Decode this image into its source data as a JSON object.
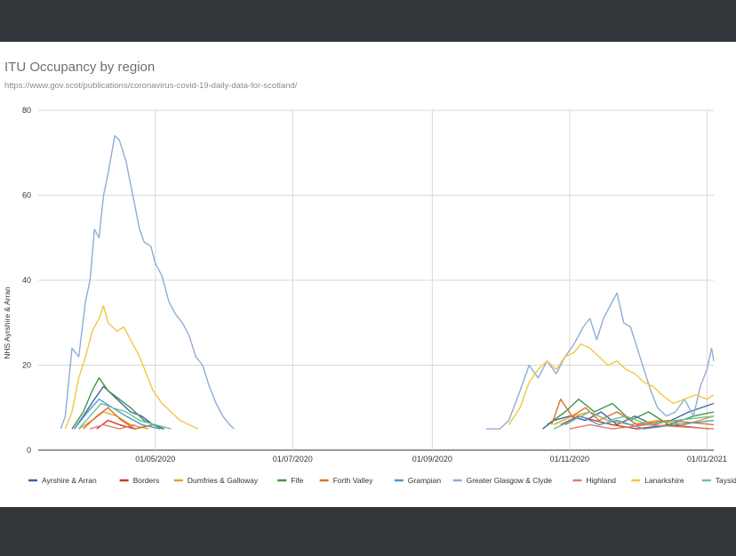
{
  "chart_data": {
    "type": "line",
    "title": "ITU Occupancy by region",
    "subtitle": "https://www.gov.scot/publications/coronavirus-covid-19-daily-data-for-scotland/",
    "ylabel": "NHS Ayrshire & Arran",
    "xlabel": "",
    "ylim": [
      0,
      80
    ],
    "yticks": [
      0,
      20,
      40,
      60,
      80
    ],
    "xlim": [
      "2020-03-10",
      "2021-01-04"
    ],
    "xticks": [
      {
        "date": "2020-05-01",
        "label": "01/05/2020"
      },
      {
        "date": "2020-07-01",
        "label": "01/07/2020"
      },
      {
        "date": "2020-09-01",
        "label": "01/09/2020"
      },
      {
        "date": "2020-11-01",
        "label": "01/11/2020"
      },
      {
        "date": "2021-01-01",
        "label": "01/01/2021"
      }
    ],
    "grid": true,
    "legend_position": "bottom",
    "series": [
      {
        "name": "Ayrshire & Arran",
        "color": "#3a67a6",
        "points": [
          [
            "2020-03-26",
            5
          ],
          [
            "2020-03-30",
            8
          ],
          [
            "2020-04-04",
            12
          ],
          [
            "2020-04-08",
            15
          ],
          [
            "2020-04-12",
            13
          ],
          [
            "2020-04-16",
            11
          ],
          [
            "2020-04-20",
            9
          ],
          [
            "2020-04-25",
            8
          ],
          [
            "2020-04-30",
            6
          ],
          [
            "2020-05-05",
            5
          ],
          [
            "2020-10-20",
            5
          ],
          [
            "2020-10-25",
            7
          ],
          [
            "2020-11-01",
            8
          ],
          [
            "2020-11-08",
            7
          ],
          [
            "2020-11-15",
            9
          ],
          [
            "2020-11-22",
            6
          ],
          [
            "2020-11-30",
            8
          ],
          [
            "2020-12-08",
            6
          ],
          [
            "2020-12-16",
            7
          ],
          [
            "2020-12-24",
            9
          ],
          [
            "2021-01-04",
            11
          ]
        ]
      },
      {
        "name": "Borders",
        "color": "#c73b2c",
        "points": [
          [
            "2020-04-05",
            5
          ],
          [
            "2020-04-10",
            7
          ],
          [
            "2020-04-15",
            6
          ],
          [
            "2020-04-22",
            5
          ],
          [
            "2020-04-30",
            6
          ],
          [
            "2020-10-28",
            6
          ],
          [
            "2020-11-05",
            8
          ],
          [
            "2020-11-12",
            7
          ],
          [
            "2020-11-20",
            6
          ],
          [
            "2020-12-01",
            5
          ],
          [
            "2020-12-15",
            6
          ],
          [
            "2021-01-02",
            5
          ]
        ]
      },
      {
        "name": "Dumfries & Galloway",
        "color": "#e0a52e",
        "points": [
          [
            "2020-03-28",
            5
          ],
          [
            "2020-04-03",
            7
          ],
          [
            "2020-04-08",
            9
          ],
          [
            "2020-04-14",
            8
          ],
          [
            "2020-04-20",
            6
          ],
          [
            "2020-04-28",
            5
          ],
          [
            "2020-10-25",
            6
          ],
          [
            "2020-11-02",
            8
          ],
          [
            "2020-11-10",
            9
          ],
          [
            "2020-11-18",
            7
          ],
          [
            "2020-11-28",
            6
          ],
          [
            "2020-12-10",
            7
          ],
          [
            "2020-12-22",
            6
          ],
          [
            "2021-01-04",
            8
          ]
        ]
      },
      {
        "name": "Fife",
        "color": "#3e9647",
        "points": [
          [
            "2020-03-25",
            5
          ],
          [
            "2020-03-30",
            9
          ],
          [
            "2020-04-03",
            14
          ],
          [
            "2020-04-06",
            17
          ],
          [
            "2020-04-10",
            14
          ],
          [
            "2020-04-15",
            12
          ],
          [
            "2020-04-20",
            10
          ],
          [
            "2020-04-26",
            7
          ],
          [
            "2020-05-04",
            5
          ],
          [
            "2020-10-22",
            6
          ],
          [
            "2020-10-30",
            9
          ],
          [
            "2020-11-05",
            12
          ],
          [
            "2020-11-12",
            9
          ],
          [
            "2020-11-20",
            11
          ],
          [
            "2020-11-28",
            7
          ],
          [
            "2020-12-06",
            9
          ],
          [
            "2020-12-15",
            6
          ],
          [
            "2020-12-26",
            8
          ],
          [
            "2021-01-04",
            9
          ]
        ]
      },
      {
        "name": "Forth Valley",
        "color": "#d9702a",
        "points": [
          [
            "2020-03-30",
            5
          ],
          [
            "2020-04-05",
            8
          ],
          [
            "2020-04-10",
            10
          ],
          [
            "2020-04-16",
            7
          ],
          [
            "2020-04-22",
            5
          ],
          [
            "2020-04-30",
            6
          ],
          [
            "2020-10-24",
            6
          ],
          [
            "2020-10-28",
            12
          ],
          [
            "2020-11-02",
            8
          ],
          [
            "2020-11-08",
            10
          ],
          [
            "2020-11-14",
            7
          ],
          [
            "2020-11-22",
            9
          ],
          [
            "2020-12-01",
            6
          ],
          [
            "2020-12-15",
            7
          ],
          [
            "2021-01-04",
            6
          ]
        ]
      },
      {
        "name": "Grampian",
        "color": "#4d9acb",
        "points": [
          [
            "2020-03-26",
            5
          ],
          [
            "2020-04-01",
            9
          ],
          [
            "2020-04-06",
            12
          ],
          [
            "2020-04-12",
            10
          ],
          [
            "2020-04-18",
            8
          ],
          [
            "2020-04-25",
            6
          ],
          [
            "2020-05-03",
            5
          ],
          [
            "2020-10-30",
            6
          ],
          [
            "2020-11-06",
            8
          ],
          [
            "2020-11-14",
            6
          ],
          [
            "2020-11-22",
            7
          ],
          [
            "2020-12-04",
            5
          ],
          [
            "2020-12-18",
            6
          ],
          [
            "2021-01-04",
            7
          ]
        ]
      },
      {
        "name": "Greater Glasgow & Clyde",
        "color": "#8eadd6",
        "points": [
          [
            "2020-03-20",
            5
          ],
          [
            "2020-03-22",
            8
          ],
          [
            "2020-03-25",
            24
          ],
          [
            "2020-03-28",
            22
          ],
          [
            "2020-03-31",
            35
          ],
          [
            "2020-04-02",
            40
          ],
          [
            "2020-04-04",
            52
          ],
          [
            "2020-04-06",
            50
          ],
          [
            "2020-04-08",
            60
          ],
          [
            "2020-04-10",
            65
          ],
          [
            "2020-04-13",
            74
          ],
          [
            "2020-04-15",
            73
          ],
          [
            "2020-04-18",
            68
          ],
          [
            "2020-04-21",
            60
          ],
          [
            "2020-04-24",
            52
          ],
          [
            "2020-04-26",
            49
          ],
          [
            "2020-04-29",
            48
          ],
          [
            "2020-05-01",
            44
          ],
          [
            "2020-05-04",
            41
          ],
          [
            "2020-05-07",
            35
          ],
          [
            "2020-05-10",
            32
          ],
          [
            "2020-05-13",
            30
          ],
          [
            "2020-05-16",
            27
          ],
          [
            "2020-05-19",
            22
          ],
          [
            "2020-05-22",
            20
          ],
          [
            "2020-05-25",
            15
          ],
          [
            "2020-05-28",
            11
          ],
          [
            "2020-05-31",
            8
          ],
          [
            "2020-06-03",
            6
          ],
          [
            "2020-06-05",
            5
          ],
          [
            "2020-09-25",
            5
          ],
          [
            "2020-10-01",
            5
          ],
          [
            "2020-10-05",
            7
          ],
          [
            "2020-10-10",
            14
          ],
          [
            "2020-10-14",
            20
          ],
          [
            "2020-10-18",
            17
          ],
          [
            "2020-10-22",
            21
          ],
          [
            "2020-10-26",
            18
          ],
          [
            "2020-10-30",
            22
          ],
          [
            "2020-11-03",
            25
          ],
          [
            "2020-11-07",
            29
          ],
          [
            "2020-11-10",
            31
          ],
          [
            "2020-11-13",
            26
          ],
          [
            "2020-11-16",
            31
          ],
          [
            "2020-11-19",
            34
          ],
          [
            "2020-11-22",
            37
          ],
          [
            "2020-11-25",
            30
          ],
          [
            "2020-11-28",
            29
          ],
          [
            "2020-12-01",
            24
          ],
          [
            "2020-12-04",
            19
          ],
          [
            "2020-12-07",
            14
          ],
          [
            "2020-12-10",
            10
          ],
          [
            "2020-12-14",
            8
          ],
          [
            "2020-12-18",
            9
          ],
          [
            "2020-12-22",
            12
          ],
          [
            "2020-12-26",
            8
          ],
          [
            "2020-12-29",
            15
          ],
          [
            "2021-01-01",
            19
          ],
          [
            "2021-01-03",
            24
          ],
          [
            "2021-01-04",
            21
          ]
        ]
      },
      {
        "name": "Highland",
        "color": "#e07b6a",
        "points": [
          [
            "2020-04-02",
            5
          ],
          [
            "2020-04-08",
            6
          ],
          [
            "2020-04-15",
            5
          ],
          [
            "2020-04-22",
            6
          ],
          [
            "2020-11-01",
            5
          ],
          [
            "2020-11-10",
            6
          ],
          [
            "2020-11-20",
            5
          ],
          [
            "2020-12-05",
            6
          ],
          [
            "2021-01-04",
            5
          ]
        ]
      },
      {
        "name": "Lanarkshire",
        "color": "#f2c744",
        "points": [
          [
            "2020-03-22",
            5
          ],
          [
            "2020-03-25",
            9
          ],
          [
            "2020-03-28",
            17
          ],
          [
            "2020-03-31",
            22
          ],
          [
            "2020-04-03",
            28
          ],
          [
            "2020-04-06",
            31
          ],
          [
            "2020-04-08",
            34
          ],
          [
            "2020-04-10",
            30
          ],
          [
            "2020-04-14",
            28
          ],
          [
            "2020-04-17",
            29
          ],
          [
            "2020-04-20",
            26
          ],
          [
            "2020-04-24",
            22
          ],
          [
            "2020-04-27",
            18
          ],
          [
            "2020-04-30",
            14
          ],
          [
            "2020-05-04",
            11
          ],
          [
            "2020-05-08",
            9
          ],
          [
            "2020-05-12",
            7
          ],
          [
            "2020-05-16",
            6
          ],
          [
            "2020-05-20",
            5
          ],
          [
            "2020-10-05",
            6
          ],
          [
            "2020-10-10",
            10
          ],
          [
            "2020-10-14",
            16
          ],
          [
            "2020-10-18",
            19
          ],
          [
            "2020-10-22",
            21
          ],
          [
            "2020-10-26",
            19
          ],
          [
            "2020-10-30",
            22
          ],
          [
            "2020-11-03",
            23
          ],
          [
            "2020-11-06",
            25
          ],
          [
            "2020-11-10",
            24
          ],
          [
            "2020-11-14",
            22
          ],
          [
            "2020-11-18",
            20
          ],
          [
            "2020-11-22",
            21
          ],
          [
            "2020-11-26",
            19
          ],
          [
            "2020-11-30",
            18
          ],
          [
            "2020-12-04",
            16
          ],
          [
            "2020-12-08",
            15
          ],
          [
            "2020-12-12",
            13
          ],
          [
            "2020-12-17",
            11
          ],
          [
            "2020-12-22",
            12
          ],
          [
            "2020-12-27",
            13
          ],
          [
            "2021-01-01",
            12
          ],
          [
            "2021-01-04",
            13
          ]
        ]
      },
      {
        "name": "Tayside",
        "color": "#6fbf9e",
        "points": [
          [
            "2020-03-28",
            5
          ],
          [
            "2020-04-02",
            8
          ],
          [
            "2020-04-07",
            11
          ],
          [
            "2020-04-12",
            10
          ],
          [
            "2020-04-18",
            9
          ],
          [
            "2020-04-24",
            7
          ],
          [
            "2020-05-01",
            6
          ],
          [
            "2020-05-08",
            5
          ],
          [
            "2020-10-25",
            5
          ],
          [
            "2020-11-02",
            7
          ],
          [
            "2020-11-10",
            9
          ],
          [
            "2020-11-18",
            7
          ],
          [
            "2020-11-26",
            8
          ],
          [
            "2020-12-06",
            6
          ],
          [
            "2020-12-18",
            7
          ],
          [
            "2021-01-04",
            8
          ]
        ]
      }
    ]
  }
}
